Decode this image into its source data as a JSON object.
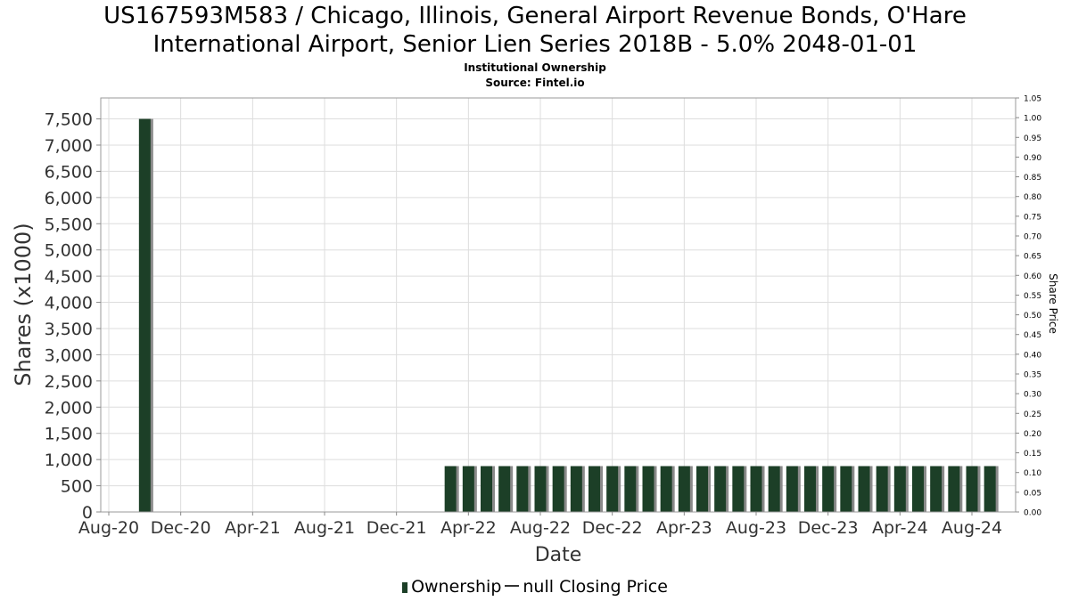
{
  "header": {
    "title_line_1": "US167593M583 / Chicago, Illinois, General Airport Revenue Bonds, O'Hare",
    "title_line_2": "International Airport, Senior Lien Series 2018B - 5.0% 2048-01-01",
    "subtitle_1": "Institutional Ownership",
    "subtitle_2": "Source: Fintel.io"
  },
  "legend": {
    "ownership_label": "Ownership",
    "price_label": "null Closing Price"
  },
  "colors": {
    "bar": "#1c3f27",
    "bar_shadow": "#8a8a8a",
    "grid": "#dddddd",
    "frame": "#999999"
  },
  "chart_data": {
    "type": "bar",
    "xlabel": "Date",
    "ylabel": "Shares (x1000)",
    "y2label": "Share Price",
    "ylim": [
      0,
      7900
    ],
    "y2lim": [
      0,
      1.05
    ],
    "y_ticks": [
      "0",
      "500",
      "1,000",
      "1,500",
      "2,000",
      "2,500",
      "3,000",
      "3,500",
      "4,000",
      "4,500",
      "5,000",
      "5,500",
      "6,000",
      "6,500",
      "7,000",
      "7,500"
    ],
    "y2_ticks": [
      "0.00",
      "0.05",
      "0.10",
      "0.15",
      "0.20",
      "0.25",
      "0.30",
      "0.35",
      "0.40",
      "0.45",
      "0.50",
      "0.55",
      "0.60",
      "0.65",
      "0.70",
      "0.75",
      "0.80",
      "0.85",
      "0.90",
      "0.95",
      "1.00",
      "1.05"
    ],
    "x_ticks": [
      "Aug-20",
      "Dec-20",
      "Apr-21",
      "Aug-21",
      "Dec-21",
      "Apr-22",
      "Aug-22",
      "Dec-22",
      "Apr-23",
      "Aug-23",
      "Dec-23",
      "Apr-24",
      "Aug-24"
    ],
    "grid": true,
    "legend_position": "bottom-center",
    "series": [
      {
        "name": "Ownership",
        "dates": [
          "2020-10",
          "2022-03",
          "2022-04",
          "2022-05",
          "2022-06",
          "2022-07",
          "2022-08",
          "2022-09",
          "2022-10",
          "2022-11",
          "2022-12",
          "2023-01",
          "2023-02",
          "2023-03",
          "2023-04",
          "2023-05",
          "2023-06",
          "2023-07",
          "2023-08",
          "2023-09",
          "2023-10",
          "2023-11",
          "2023-12",
          "2024-01",
          "2024-02",
          "2024-03",
          "2024-04",
          "2024-05",
          "2024-06",
          "2024-07",
          "2024-08",
          "2024-09"
        ],
        "values": [
          7500,
          875,
          875,
          875,
          875,
          875,
          875,
          875,
          875,
          875,
          875,
          875,
          875,
          875,
          875,
          875,
          875,
          875,
          875,
          875,
          875,
          875,
          875,
          875,
          875,
          875,
          875,
          875,
          875,
          875,
          875,
          875
        ]
      },
      {
        "name": "null Closing Price",
        "dates": [],
        "values": []
      }
    ]
  }
}
